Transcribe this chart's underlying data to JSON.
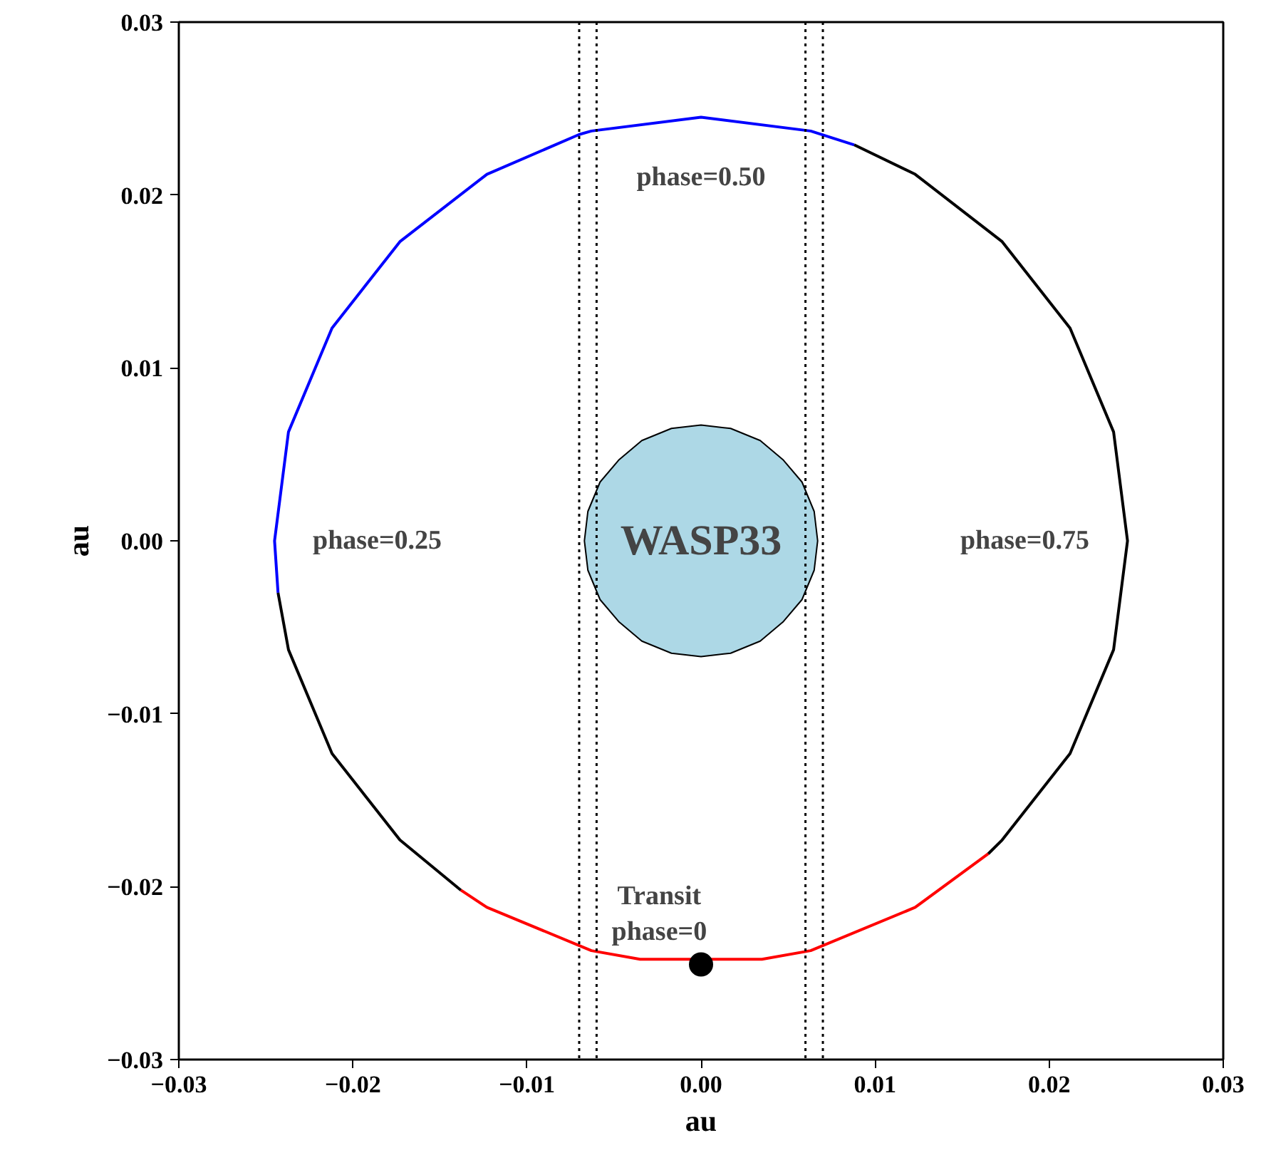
{
  "chart_data": {
    "type": "line",
    "xlabel": "au",
    "ylabel": "au",
    "xlim": [
      -0.03,
      0.03
    ],
    "ylim": [
      -0.03,
      0.03
    ],
    "xticks": [
      {
        "value": -0.03,
        "label": "−0.03"
      },
      {
        "value": -0.02,
        "label": "−0.02"
      },
      {
        "value": -0.01,
        "label": "−0.01"
      },
      {
        "value": 0,
        "label": "0.00"
      },
      {
        "value": 0.01,
        "label": "0.01"
      },
      {
        "value": 0.02,
        "label": "0.02"
      },
      {
        "value": 0.03,
        "label": "0.03"
      }
    ],
    "yticks": [
      {
        "value": -0.03,
        "label": "−0.03"
      },
      {
        "value": -0.02,
        "label": "−0.02"
      },
      {
        "value": -0.01,
        "label": "−0.01"
      },
      {
        "value": 0,
        "label": "0.00"
      },
      {
        "value": 0.01,
        "label": "0.01"
      },
      {
        "value": 0.02,
        "label": "0.02"
      },
      {
        "value": 0.03,
        "label": "0.03"
      }
    ],
    "grid": false,
    "series": [
      {
        "type": "area",
        "name": "WASP33",
        "color": "#add8e6",
        "x": [
          0.0067,
          0.0065,
          0.0058,
          0.0047,
          0.0034,
          0.0017,
          0,
          -0.0017,
          -0.0034,
          -0.0047,
          -0.0058,
          -0.0065,
          -0.0067,
          -0.0065,
          -0.0058,
          -0.0047,
          -0.0034,
          -0.0017,
          0,
          0.0017,
          0.0034,
          0.0047,
          0.0058,
          0.0065
        ],
        "values": [
          0,
          0.0017,
          0.0034,
          0.0047,
          0.0058,
          0.0065,
          0.0067,
          0.0065,
          0.0058,
          0.0047,
          0.0034,
          0.0017,
          0,
          -0.0017,
          -0.0034,
          -0.0047,
          -0.0058,
          -0.0065,
          -0.0067,
          -0.0065,
          -0.0058,
          -0.0047,
          -0.0034,
          -0.0017
        ]
      },
      {
        "color": "#0000ff",
        "x": [
          -0.0243,
          -0.0245,
          -0.0237,
          -0.0212,
          -0.0173,
          -0.0123,
          -0.007,
          -0.0063,
          0,
          0.0063,
          0.0088
        ],
        "values": [
          -0.003,
          0,
          0.0063,
          0.0123,
          0.0173,
          0.0212,
          0.0235,
          0.0237,
          0.0245,
          0.0237,
          0.0229
        ]
      },
      {
        "color": "#ff0000",
        "x": [
          -0.0138,
          -0.0123,
          -0.0063,
          -0.0035,
          0.0035,
          0.0063,
          0.0123,
          0.0165
        ],
        "values": [
          -0.0202,
          -0.0212,
          -0.0237,
          -0.0242,
          -0.0242,
          -0.0237,
          -0.0212,
          -0.0181
        ]
      },
      {
        "color": "#000000",
        "x": [
          0.0088,
          0.0123,
          0.0173,
          0.0212,
          0.0237,
          0.0245,
          0.0237,
          0.0212,
          0.0173,
          0.0165
        ],
        "values": [
          0.0229,
          0.0212,
          0.0173,
          0.0123,
          0.0063,
          0,
          -0.0063,
          -0.0123,
          -0.0173,
          -0.0181
        ]
      },
      {
        "color": "#000000",
        "x": [
          -0.0138,
          -0.0173,
          -0.0212,
          -0.0237,
          -0.0243
        ],
        "values": [
          -0.0202,
          -0.0173,
          -0.0123,
          -0.0063,
          -0.003
        ]
      },
      {
        "type": "scatter",
        "marker": "circle",
        "color": "#000000",
        "x": [
          0
        ],
        "values": [
          -0.0245
        ]
      }
    ],
    "ref_lines": [
      {
        "axis": "x",
        "value": -0.007,
        "color": "#000000",
        "line_style": "dotted"
      },
      {
        "axis": "x",
        "value": -0.006,
        "color": "#000000",
        "line_style": "dotted"
      },
      {
        "axis": "x",
        "value": 0.006,
        "color": "#000000",
        "line_style": "dotted"
      },
      {
        "axis": "x",
        "value": 0.007,
        "color": "#000000",
        "line_style": "dotted"
      }
    ],
    "annotations": [
      "phase=0.50",
      "phase=0.25",
      "phase=0.75",
      "Transit\nphase=0"
    ]
  }
}
